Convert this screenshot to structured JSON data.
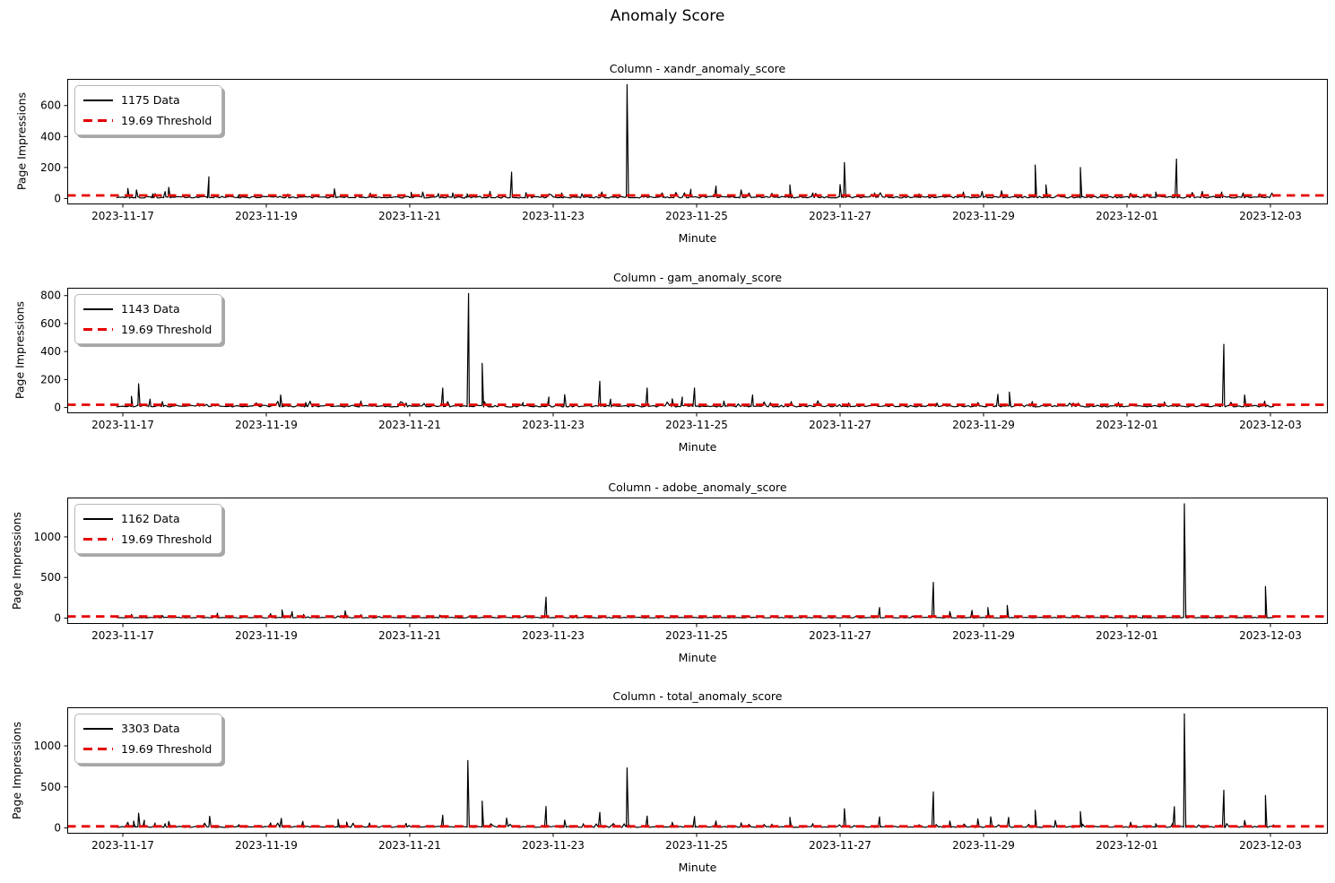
{
  "figure": {
    "suptitle": "Anomaly Score",
    "background": "#ffffff"
  },
  "colors": {
    "data_line": "#000000",
    "threshold_line": "#e50000"
  },
  "chart_data": [
    {
      "type": "line",
      "title": "Column - xandr_anomaly_score",
      "xlabel": "Minute",
      "ylabel": "Page Impressions",
      "legend": {
        "data_label": "1175 Data",
        "threshold_label": "19.69 Threshold",
        "position": "upper-left"
      },
      "n_points": 1175,
      "threshold": 19.69,
      "grid": false,
      "x_tick_days": [
        0,
        2,
        4,
        6,
        8,
        10,
        12,
        14,
        16
      ],
      "x_tick_labels": [
        "2023-11-17",
        "2023-11-19",
        "2023-11-21",
        "2023-11-23",
        "2023-11-25",
        "2023-11-27",
        "2023-11-29",
        "2023-12-01",
        "2023-12-03"
      ],
      "y_ticks": [
        0,
        200,
        400,
        600
      ],
      "ylim": [
        -38,
        772
      ],
      "data_days": [
        -0.09,
        16.06
      ],
      "baseline": {
        "mean": 3,
        "noise": 11,
        "bump_chance": 0.05,
        "bump_max": 35,
        "seed": 101
      },
      "spikes": [
        [
          0.07,
          65
        ],
        [
          0.19,
          55
        ],
        [
          0.42,
          30
        ],
        [
          0.59,
          45
        ],
        [
          0.64,
          72
        ],
        [
          1.2,
          140
        ],
        [
          1.62,
          25
        ],
        [
          2.3,
          28
        ],
        [
          2.95,
          62
        ],
        [
          3.45,
          35
        ],
        [
          4.02,
          40
        ],
        [
          4.18,
          42
        ],
        [
          4.4,
          32
        ],
        [
          4.6,
          36
        ],
        [
          4.8,
          30
        ],
        [
          5.12,
          46
        ],
        [
          5.42,
          170
        ],
        [
          5.62,
          38
        ],
        [
          6.12,
          36
        ],
        [
          6.4,
          30
        ],
        [
          6.68,
          42
        ],
        [
          7.03,
          735
        ],
        [
          7.52,
          36
        ],
        [
          7.92,
          60
        ],
        [
          8.27,
          80
        ],
        [
          8.62,
          55
        ],
        [
          9.05,
          34
        ],
        [
          9.3,
          88
        ],
        [
          9.62,
          36
        ],
        [
          10.0,
          90
        ],
        [
          10.06,
          232
        ],
        [
          10.48,
          36
        ],
        [
          11.1,
          30
        ],
        [
          11.72,
          42
        ],
        [
          11.98,
          46
        ],
        [
          12.25,
          50
        ],
        [
          12.72,
          216
        ],
        [
          12.87,
          88
        ],
        [
          13.35,
          200
        ],
        [
          14.05,
          34
        ],
        [
          14.4,
          42
        ],
        [
          14.69,
          255
        ],
        [
          15.05,
          46
        ],
        [
          15.32,
          42
        ],
        [
          15.62,
          36
        ],
        [
          15.85,
          30
        ]
      ]
    },
    {
      "type": "line",
      "title": "Column - gam_anomaly_score",
      "xlabel": "Minute",
      "ylabel": "Page Impressions",
      "legend": {
        "data_label": "1143 Data",
        "threshold_label": "19.69 Threshold",
        "position": "upper-left"
      },
      "n_points": 1143,
      "threshold": 19.69,
      "grid": false,
      "x_tick_days": [
        0,
        2,
        4,
        6,
        8,
        10,
        12,
        14,
        16
      ],
      "x_tick_labels": [
        "2023-11-17",
        "2023-11-19",
        "2023-11-21",
        "2023-11-23",
        "2023-11-25",
        "2023-11-27",
        "2023-11-29",
        "2023-12-01",
        "2023-12-03"
      ],
      "y_ticks": [
        0,
        200,
        400,
        600,
        800
      ],
      "ylim": [
        -41,
        856
      ],
      "data_days": [
        -0.09,
        16.06
      ],
      "baseline": {
        "mean": 4,
        "noise": 12,
        "bump_chance": 0.06,
        "bump_max": 40,
        "seed": 202
      },
      "spikes": [
        [
          0.12,
          80
        ],
        [
          0.22,
          170
        ],
        [
          0.38,
          60
        ],
        [
          0.55,
          42
        ],
        [
          1.05,
          30
        ],
        [
          2.2,
          90
        ],
        [
          2.55,
          36
        ],
        [
          3.32,
          46
        ],
        [
          3.95,
          32
        ],
        [
          4.46,
          140
        ],
        [
          4.82,
          815
        ],
        [
          5.01,
          315
        ],
        [
          5.58,
          36
        ],
        [
          5.94,
          75
        ],
        [
          6.16,
          92
        ],
        [
          6.65,
          188
        ],
        [
          6.8,
          60
        ],
        [
          7.31,
          140
        ],
        [
          7.66,
          62
        ],
        [
          7.8,
          75
        ],
        [
          7.97,
          140
        ],
        [
          8.38,
          46
        ],
        [
          8.78,
          90
        ],
        [
          9.32,
          42
        ],
        [
          10.12,
          32
        ],
        [
          11.35,
          32
        ],
        [
          11.92,
          36
        ],
        [
          12.2,
          95
        ],
        [
          12.36,
          110
        ],
        [
          12.68,
          42
        ],
        [
          13.25,
          32
        ],
        [
          13.88,
          36
        ],
        [
          14.52,
          40
        ],
        [
          15.35,
          452
        ],
        [
          15.64,
          90
        ],
        [
          15.92,
          46
        ]
      ]
    },
    {
      "type": "line",
      "title": "Column - adobe_anomaly_score",
      "xlabel": "Minute",
      "ylabel": "Page Impressions",
      "legend": {
        "data_label": "1162 Data",
        "threshold_label": "19.69 Threshold",
        "position": "upper-left"
      },
      "n_points": 1162,
      "threshold": 19.69,
      "grid": false,
      "x_tick_days": [
        0,
        2,
        4,
        6,
        8,
        10,
        12,
        14,
        16
      ],
      "x_tick_labels": [
        "2023-11-17",
        "2023-11-19",
        "2023-11-21",
        "2023-11-23",
        "2023-11-25",
        "2023-11-27",
        "2023-11-29",
        "2023-12-01",
        "2023-12-03"
      ],
      "y_ticks": [
        0,
        500,
        1000
      ],
      "ylim": [
        -72,
        1485
      ],
      "data_days": [
        -0.09,
        16.06
      ],
      "baseline": {
        "mean": 2,
        "noise": 8,
        "bump_chance": 0.03,
        "bump_max": 25,
        "seed": 303
      },
      "spikes": [
        [
          0.12,
          45
        ],
        [
          0.55,
          32
        ],
        [
          1.32,
          60
        ],
        [
          2.06,
          55
        ],
        [
          2.22,
          100
        ],
        [
          2.36,
          80
        ],
        [
          2.52,
          46
        ],
        [
          3.1,
          90
        ],
        [
          3.32,
          42
        ],
        [
          4.42,
          36
        ],
        [
          5.9,
          258
        ],
        [
          6.32,
          36
        ],
        [
          7.05,
          26
        ],
        [
          8.32,
          30
        ],
        [
          9.05,
          26
        ],
        [
          10.55,
          130
        ],
        [
          11.3,
          440
        ],
        [
          11.53,
          80
        ],
        [
          11.84,
          95
        ],
        [
          12.06,
          130
        ],
        [
          12.33,
          155
        ],
        [
          13.3,
          36
        ],
        [
          14.22,
          30
        ],
        [
          14.8,
          1408
        ],
        [
          15.93,
          390
        ]
      ]
    },
    {
      "type": "line",
      "title": "Column - total_anomaly_score",
      "xlabel": "Minute",
      "ylabel": "Page Impressions",
      "legend": {
        "data_label": "3303 Data",
        "threshold_label": "19.69 Threshold",
        "position": "upper-left"
      },
      "n_points": 3303,
      "threshold": 19.69,
      "grid": false,
      "x_tick_days": [
        0,
        2,
        4,
        6,
        8,
        10,
        12,
        14,
        16
      ],
      "x_tick_labels": [
        "2023-11-17",
        "2023-11-19",
        "2023-11-21",
        "2023-11-23",
        "2023-11-25",
        "2023-11-27",
        "2023-11-29",
        "2023-12-01",
        "2023-12-03"
      ],
      "y_ticks": [
        0,
        500,
        1000
      ],
      "ylim": [
        -70,
        1470
      ],
      "data_days": [
        -0.09,
        16.06
      ],
      "baseline": {
        "mean": 6,
        "noise": 14,
        "bump_chance": 0.08,
        "bump_max": 45,
        "seed": 404
      },
      "spikes": [
        [
          0.07,
          70
        ],
        [
          0.15,
          85
        ],
        [
          0.22,
          180
        ],
        [
          0.3,
          95
        ],
        [
          0.45,
          60
        ],
        [
          0.59,
          52
        ],
        [
          0.64,
          80
        ],
        [
          1.21,
          142
        ],
        [
          1.62,
          40
        ],
        [
          2.06,
          62
        ],
        [
          2.21,
          118
        ],
        [
          2.51,
          80
        ],
        [
          3.0,
          105
        ],
        [
          3.12,
          72
        ],
        [
          3.44,
          60
        ],
        [
          3.95,
          56
        ],
        [
          4.46,
          155
        ],
        [
          4.81,
          822
        ],
        [
          5.01,
          328
        ],
        [
          5.35,
          120
        ],
        [
          5.9,
          262
        ],
        [
          6.16,
          95
        ],
        [
          6.42,
          46
        ],
        [
          6.65,
          190
        ],
        [
          7.03,
          732
        ],
        [
          7.31,
          145
        ],
        [
          7.66,
          70
        ],
        [
          7.97,
          140
        ],
        [
          8.27,
          85
        ],
        [
          8.62,
          62
        ],
        [
          9.05,
          46
        ],
        [
          9.3,
          130
        ],
        [
          9.62,
          52
        ],
        [
          10.06,
          235
        ],
        [
          10.55,
          135
        ],
        [
          11.1,
          40
        ],
        [
          11.3,
          440
        ],
        [
          11.53,
          85
        ],
        [
          11.92,
          110
        ],
        [
          12.1,
          135
        ],
        [
          12.35,
          130
        ],
        [
          12.72,
          215
        ],
        [
          13.0,
          92
        ],
        [
          13.35,
          200
        ],
        [
          14.05,
          70
        ],
        [
          14.4,
          52
        ],
        [
          14.66,
          260
        ],
        [
          14.8,
          1390
        ],
        [
          15.35,
          460
        ],
        [
          15.64,
          92
        ],
        [
          15.93,
          395
        ]
      ]
    }
  ]
}
